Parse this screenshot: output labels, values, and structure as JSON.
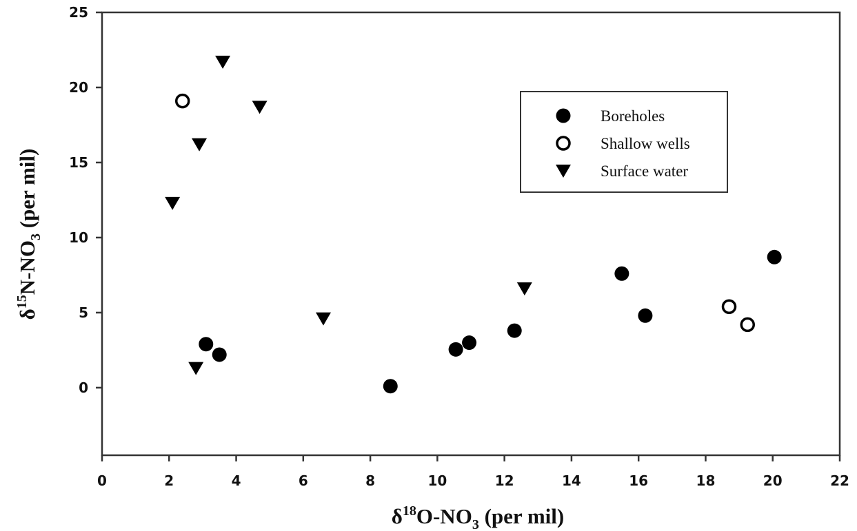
{
  "chart_data": {
    "type": "scatter",
    "title": "",
    "xlabel": {
      "prefix": "δ",
      "sup": "18",
      "main": "O-NO",
      "sub": "3",
      "suffix": " (per mil)"
    },
    "ylabel": {
      "prefix": "δ",
      "sup": "15",
      "main": "N-NO",
      "sub": "3",
      "suffix": " (per mil)"
    },
    "xlim": [
      0,
      22
    ],
    "ylim": [
      -4.5,
      25
    ],
    "xticks": [
      0,
      2,
      4,
      6,
      8,
      10,
      12,
      14,
      16,
      18,
      20,
      22
    ],
    "yticks": [
      0,
      5,
      10,
      15,
      20,
      25
    ],
    "grid": false,
    "legend_position": "top-right",
    "series": [
      {
        "name": "Boreholes",
        "marker": "filled-circle",
        "color": "#000000",
        "points": [
          [
            3.1,
            2.9
          ],
          [
            3.5,
            2.2
          ],
          [
            8.6,
            0.1
          ],
          [
            10.55,
            2.55
          ],
          [
            10.95,
            3.0
          ],
          [
            12.3,
            3.8
          ],
          [
            15.5,
            7.6
          ],
          [
            16.2,
            4.8
          ],
          [
            20.05,
            8.7
          ]
        ]
      },
      {
        "name": "Shallow wells",
        "marker": "open-circle",
        "color": "#000000",
        "points": [
          [
            2.4,
            19.1
          ],
          [
            18.7,
            5.4
          ],
          [
            19.25,
            4.2
          ]
        ]
      },
      {
        "name": "Surface water",
        "marker": "down-triangle",
        "color": "#000000",
        "points": [
          [
            2.1,
            12.3
          ],
          [
            2.8,
            1.3
          ],
          [
            2.9,
            16.2
          ],
          [
            3.6,
            21.7
          ],
          [
            4.7,
            18.7
          ],
          [
            6.6,
            4.6
          ],
          [
            12.6,
            6.6
          ]
        ]
      }
    ]
  }
}
